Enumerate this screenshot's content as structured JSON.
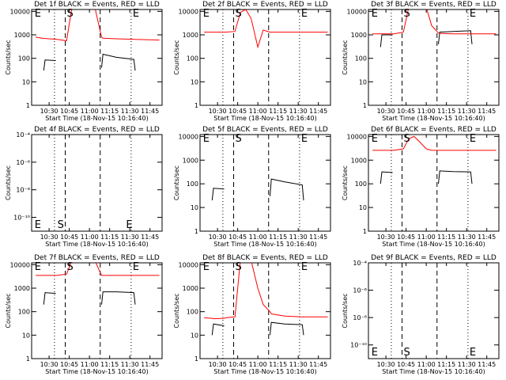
{
  "chart_data": [
    {
      "type": "line",
      "title": "Det 1f BLACK = Events, RED = LLD",
      "xlabel": "Start Time (18-Nov-15 10:16:40)",
      "ylabel": "Counts/sec",
      "log_y": true,
      "x": [
        "10:20",
        "10:26",
        "10:27",
        "10:35",
        "10:36",
        "10:43",
        "10:47",
        "10:51",
        "10:55",
        "11:00",
        "11:04",
        "11:09",
        "11:10",
        "11:20",
        "11:33",
        "11:34",
        "11:45",
        "11:52"
      ],
      "xlim": [
        "10:17",
        "11:54"
      ],
      "xticks": [
        "10:30",
        "10:45",
        "11:00",
        "11:15",
        "11:30",
        "11:45"
      ],
      "ylim": [
        1,
        12000
      ],
      "yticks": [
        1,
        10,
        100,
        1000,
        10000
      ],
      "series": [
        {
          "color": "#000000",
          "values": [
            null,
            30,
            85,
            80,
            null,
            null,
            null,
            null,
            null,
            null,
            null,
            40,
            150,
            110,
            90,
            30,
            null,
            null
          ]
        },
        {
          "color": "#ff0000",
          "values": [
            800,
            700,
            700,
            650,
            640,
            560,
            15000,
            15000,
            15000,
            15000,
            15000,
            800,
            720,
            680,
            650,
            640,
            620,
            600
          ]
        }
      ],
      "vlines": [
        {
          "x": "10:34",
          "style": "dotted"
        },
        {
          "x": "10:42",
          "style": "dashed"
        },
        {
          "x": "11:08",
          "style": "dashed"
        },
        {
          "x": "11:31",
          "style": "dotted"
        }
      ],
      "annotations": [
        {
          "text": "E",
          "x": "10:18"
        },
        {
          "text": "S",
          "x": "10:42"
        },
        {
          "text": "E",
          "x": "11:31"
        }
      ],
      "annotation_row": "top"
    },
    {
      "type": "line",
      "title": "Det 2f BLACK = Events, RED = LLD",
      "xlabel": "Start Time (18-Nov-15 10:16:40)",
      "ylabel": "Counts/sec",
      "log_y": true,
      "x": [
        "10:20",
        "10:26",
        "10:27",
        "10:35",
        "10:36",
        "10:43",
        "10:47",
        "10:51",
        "10:55",
        "11:00",
        "11:04",
        "11:09",
        "11:10",
        "11:20",
        "11:33",
        "11:34",
        "11:45",
        "11:52"
      ],
      "xlim": [
        "10:17",
        "11:54"
      ],
      "xticks": [
        "10:30",
        "10:45",
        "11:00",
        "11:15",
        "11:30",
        "11:45"
      ],
      "ylim": [
        1,
        12000
      ],
      "yticks": [
        1,
        10,
        100,
        1000,
        10000
      ],
      "series": [
        {
          "color": "#ff0000",
          "values": [
            1300,
            1300,
            1300,
            1300,
            1300,
            1400,
            9000,
            12000,
            5000,
            300,
            1600,
            1300,
            1300,
            1300,
            1300,
            1300,
            1300,
            1300
          ]
        }
      ],
      "vlines": [
        {
          "x": "10:34",
          "style": "dotted"
        },
        {
          "x": "10:42",
          "style": "dashed"
        },
        {
          "x": "11:08",
          "style": "dashed"
        },
        {
          "x": "11:31",
          "style": "dotted"
        }
      ],
      "annotations": [
        {
          "text": "E",
          "x": "10:18"
        },
        {
          "text": "S",
          "x": "10:42"
        },
        {
          "text": "E",
          "x": "11:31"
        }
      ],
      "annotation_row": "top"
    },
    {
      "type": "line",
      "title": "Det 3f BLACK = Events, RED = LLD",
      "xlabel": "Start Time (18-Nov-15 10:16:40)",
      "ylabel": "Counts/sec",
      "log_y": true,
      "x": [
        "10:20",
        "10:26",
        "10:27",
        "10:35",
        "10:36",
        "10:43",
        "10:47",
        "10:51",
        "10:55",
        "11:00",
        "11:04",
        "11:09",
        "11:10",
        "11:20",
        "11:33",
        "11:34",
        "11:45",
        "11:52"
      ],
      "xlim": [
        "10:17",
        "11:54"
      ],
      "xticks": [
        "10:30",
        "10:45",
        "11:00",
        "11:15",
        "11:30",
        "11:45"
      ],
      "ylim": [
        1,
        12000
      ],
      "yticks": [
        1,
        10,
        100,
        1000,
        10000
      ],
      "series": [
        {
          "color": "#000000",
          "values": [
            null,
            300,
            1000,
            1000,
            null,
            null,
            null,
            null,
            null,
            null,
            null,
            400,
            1300,
            1400,
            1500,
            400,
            null,
            null
          ]
        },
        {
          "color": "#ff0000",
          "values": [
            1100,
            1100,
            1100,
            1100,
            1100,
            1300,
            15000,
            15000,
            15000,
            15000,
            2500,
            1200,
            1150,
            1100,
            1100,
            1100,
            1100,
            1100
          ]
        }
      ],
      "vlines": [
        {
          "x": "10:34",
          "style": "dotted"
        },
        {
          "x": "10:42",
          "style": "dashed"
        },
        {
          "x": "11:08",
          "style": "dashed"
        },
        {
          "x": "11:31",
          "style": "dotted"
        }
      ],
      "annotations": [
        {
          "text": "E",
          "x": "10:18"
        },
        {
          "text": "S",
          "x": "10:42"
        },
        {
          "text": "E",
          "x": "11:31"
        }
      ],
      "annotation_row": "top"
    },
    {
      "type": "line",
      "title": "Det 4f BLACK = Events, RED = LLD",
      "xlabel": "Start Time (18-Nov-15 10:16:40)",
      "ylabel": "Counts/sec",
      "log_y": true,
      "xlim": [
        "10:17",
        "11:54"
      ],
      "xticks": [
        "10:30",
        "10:45",
        "11:00",
        "11:15",
        "11:30",
        "11:45"
      ],
      "ylim": [
        1e-11,
        0.0001
      ],
      "yticks": [
        {
          "value": 1e-10,
          "label": "10⁻¹⁰"
        },
        {
          "value": 1e-08,
          "label": "10⁻⁸"
        },
        {
          "value": 1e-06,
          "label": "10⁻⁶"
        },
        {
          "value": 0.0001,
          "label": "10⁻⁴"
        }
      ],
      "series": [],
      "vlines": [
        {
          "x": "10:34",
          "style": "dotted"
        },
        {
          "x": "10:42",
          "style": "dashed"
        },
        {
          "x": "11:08",
          "style": "dashed"
        },
        {
          "x": "11:31",
          "style": "dotted"
        }
      ],
      "annotations": [
        {
          "text": "E",
          "x": "10:18"
        },
        {
          "text": "S",
          "x": "10:35"
        },
        {
          "text": "E",
          "x": "11:26"
        }
      ],
      "annotation_row": "bottom"
    },
    {
      "type": "line",
      "title": "Det 5f BLACK = Events, RED = LLD",
      "xlabel": "Start Time (18-Nov-15 10:16:40)",
      "ylabel": "Counts/sec",
      "log_y": true,
      "x": [
        "10:20",
        "10:26",
        "10:27",
        "10:35",
        "10:36",
        "10:43",
        "10:47",
        "10:51",
        "10:55",
        "11:00",
        "11:04",
        "11:09",
        "11:10",
        "11:20",
        "11:33",
        "11:34",
        "11:45",
        "11:52"
      ],
      "xlim": [
        "10:17",
        "11:54"
      ],
      "xticks": [
        "10:30",
        "10:45",
        "11:00",
        "11:15",
        "11:30",
        "11:45"
      ],
      "ylim": [
        1,
        12000
      ],
      "yticks": [
        1,
        10,
        100,
        1000,
        10000
      ],
      "series": [
        {
          "color": "#000000",
          "values": [
            null,
            20,
            65,
            60,
            null,
            null,
            null,
            null,
            null,
            null,
            null,
            30,
            160,
            120,
            90,
            20,
            null,
            null
          ]
        }
      ],
      "vlines": [
        {
          "x": "10:34",
          "style": "dotted"
        },
        {
          "x": "10:42",
          "style": "dashed"
        },
        {
          "x": "11:08",
          "style": "dashed"
        },
        {
          "x": "11:31",
          "style": "dotted"
        }
      ],
      "annotations": [
        {
          "text": "E",
          "x": "10:18"
        },
        {
          "text": "S",
          "x": "10:42"
        },
        {
          "text": "E",
          "x": "11:31"
        }
      ],
      "annotation_row": "top"
    },
    {
      "type": "line",
      "title": "Det 6f BLACK = Events, RED = LLD",
      "xlabel": "Start Time (18-Nov-15 10:16:40)",
      "ylabel": "Counts/sec",
      "log_y": true,
      "x": [
        "10:20",
        "10:26",
        "10:27",
        "10:35",
        "10:36",
        "10:43",
        "10:47",
        "10:51",
        "10:55",
        "11:00",
        "11:04",
        "11:09",
        "11:10",
        "11:20",
        "11:33",
        "11:34",
        "11:45",
        "11:52"
      ],
      "xlim": [
        "10:17",
        "11:54"
      ],
      "xticks": [
        "10:30",
        "10:45",
        "11:00",
        "11:15",
        "11:30",
        "11:45"
      ],
      "ylim": [
        1,
        12000
      ],
      "yticks": [
        1,
        10,
        100,
        1000,
        10000
      ],
      "series": [
        {
          "color": "#000000",
          "values": [
            null,
            100,
            320,
            300,
            null,
            null,
            null,
            null,
            null,
            null,
            null,
            100,
            350,
            330,
            320,
            100,
            null,
            null
          ]
        },
        {
          "color": "#ff0000",
          "values": [
            2600,
            2600,
            2600,
            2600,
            2600,
            3000,
            8000,
            10000,
            6000,
            3000,
            2600,
            2600,
            2600,
            2600,
            2600,
            2600,
            2600,
            2600
          ]
        }
      ],
      "vlines": [
        {
          "x": "10:34",
          "style": "dotted"
        },
        {
          "x": "10:42",
          "style": "dashed"
        },
        {
          "x": "11:08",
          "style": "dashed"
        },
        {
          "x": "11:31",
          "style": "dotted"
        }
      ],
      "annotations": [
        {
          "text": "E",
          "x": "10:18"
        },
        {
          "text": "S",
          "x": "10:42"
        },
        {
          "text": "E",
          "x": "11:31"
        }
      ],
      "annotation_row": "top"
    },
    {
      "type": "line",
      "title": "Det 7f BLACK = Events, RED = LLD",
      "xlabel": "Start Time (18-Nov-15 10:16:40)",
      "ylabel": "Counts/sec",
      "log_y": true,
      "x": [
        "10:20",
        "10:26",
        "10:27",
        "10:35",
        "10:36",
        "10:43",
        "10:47",
        "10:51",
        "10:55",
        "11:00",
        "11:04",
        "11:09",
        "11:10",
        "11:20",
        "11:33",
        "11:34",
        "11:45",
        "11:52"
      ],
      "xlim": [
        "10:17",
        "11:54"
      ],
      "xticks": [
        "10:30",
        "10:45",
        "11:00",
        "11:15",
        "11:30",
        "11:45"
      ],
      "ylim": [
        1,
        12000
      ],
      "yticks": [
        1,
        10,
        100,
        1000,
        10000
      ],
      "series": [
        {
          "color": "#000000",
          "values": [
            null,
            200,
            650,
            600,
            null,
            null,
            null,
            null,
            null,
            null,
            null,
            200,
            700,
            700,
            650,
            200,
            null,
            null
          ]
        },
        {
          "color": "#ff0000",
          "values": [
            3500,
            3500,
            3500,
            3500,
            3500,
            4000,
            15000,
            15000,
            15000,
            15000,
            15000,
            3500,
            3500,
            3500,
            3500,
            3500,
            3500,
            3500
          ]
        }
      ],
      "vlines": [
        {
          "x": "10:34",
          "style": "dotted"
        },
        {
          "x": "10:42",
          "style": "dashed"
        },
        {
          "x": "11:08",
          "style": "dashed"
        },
        {
          "x": "11:31",
          "style": "dotted"
        }
      ],
      "annotations": [
        {
          "text": "E",
          "x": "10:18"
        },
        {
          "text": "S",
          "x": "10:42"
        },
        {
          "text": "E",
          "x": "11:31"
        }
      ],
      "annotation_row": "top"
    },
    {
      "type": "line",
      "title": "Det 8f BLACK = Events, RED = LLD",
      "xlabel": "Start Time (18-Nov-15 10:16:40)",
      "ylabel": "Counts/sec",
      "log_y": true,
      "x": [
        "10:20",
        "10:26",
        "10:27",
        "10:35",
        "10:36",
        "10:43",
        "10:47",
        "10:51",
        "10:55",
        "11:00",
        "11:04",
        "11:09",
        "11:10",
        "11:20",
        "11:33",
        "11:34",
        "11:45",
        "11:52"
      ],
      "xlim": [
        "10:17",
        "11:54"
      ],
      "xticks": [
        "10:30",
        "10:45",
        "11:00",
        "11:15",
        "11:30",
        "11:45"
      ],
      "ylim": [
        1,
        12000
      ],
      "yticks": [
        1,
        10,
        100,
        1000,
        10000
      ],
      "series": [
        {
          "color": "#000000",
          "values": [
            null,
            10,
            30,
            25,
            null,
            null,
            null,
            null,
            null,
            null,
            null,
            10,
            35,
            30,
            28,
            10,
            null,
            null
          ]
        },
        {
          "color": "#ff0000",
          "values": [
            55,
            52,
            50,
            52,
            55,
            60,
            15000,
            15000,
            15000,
            1000,
            200,
            100,
            80,
            65,
            60,
            60,
            60,
            60
          ]
        }
      ],
      "vlines": [
        {
          "x": "10:34",
          "style": "dotted"
        },
        {
          "x": "10:42",
          "style": "dashed"
        },
        {
          "x": "11:08",
          "style": "dashed"
        },
        {
          "x": "11:31",
          "style": "dotted"
        }
      ],
      "annotations": [
        {
          "text": "E",
          "x": "10:18"
        },
        {
          "text": "S",
          "x": "10:42"
        },
        {
          "text": "E",
          "x": "11:31"
        }
      ],
      "annotation_row": "top"
    },
    {
      "type": "line",
      "title": "Det 9f BLACK = Events, RED = LLD",
      "xlabel": "Start Time (18-Nov-15 10:16:40)",
      "ylabel": "Counts/sec",
      "log_y": true,
      "xlim": [
        "10:17",
        "11:54"
      ],
      "xticks": [
        "10:30",
        "10:45",
        "11:00",
        "11:15",
        "11:30",
        "11:45"
      ],
      "ylim": [
        1e-11,
        0.0001
      ],
      "yticks": [
        {
          "value": 1e-10,
          "label": "10⁻¹⁰"
        },
        {
          "value": 1e-08,
          "label": "10⁻⁸"
        },
        {
          "value": 1e-06,
          "label": "10⁻⁶"
        },
        {
          "value": 0.0001,
          "label": "10⁻⁴"
        }
      ],
      "series": [],
      "vlines": [
        {
          "x": "10:34",
          "style": "dotted"
        },
        {
          "x": "10:42",
          "style": "dashed"
        },
        {
          "x": "11:08",
          "style": "dashed"
        },
        {
          "x": "11:31",
          "style": "dotted"
        }
      ],
      "annotations": [
        {
          "text": "E",
          "x": "10:18"
        },
        {
          "text": "S",
          "x": "10:42"
        },
        {
          "text": "E",
          "x": "11:31"
        }
      ],
      "annotation_row": "bottom"
    }
  ]
}
